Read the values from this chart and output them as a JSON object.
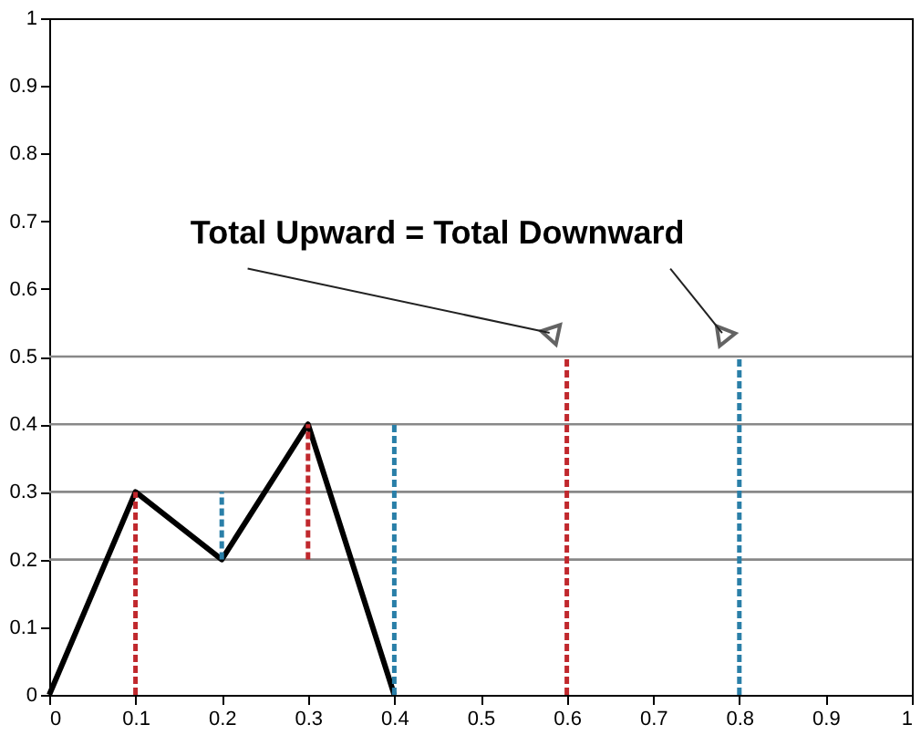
{
  "chart_data": {
    "type": "line",
    "xlim": [
      0,
      1
    ],
    "ylim": [
      0,
      1
    ],
    "xticks": [
      0,
      0.1,
      0.2,
      0.3,
      0.4,
      0.5,
      0.6,
      0.7,
      0.8,
      0.9,
      1
    ],
    "yticks": [
      0,
      0.1,
      0.2,
      0.3,
      0.4,
      0.5,
      0.6,
      0.7,
      0.8,
      0.9,
      1
    ],
    "grid": false,
    "marker": "none",
    "series": [
      {
        "color": "#000000",
        "line_style": "solid",
        "x": [
          0,
          0.1,
          0.2,
          0.3,
          0.4
        ],
        "values": [
          0,
          0.3,
          0.2,
          0.4,
          0
        ]
      },
      {
        "color": "#c0282d",
        "line_style": "dashed",
        "x": [
          0.1,
          0.1
        ],
        "values": [
          0,
          0.3
        ]
      },
      {
        "color": "#2a7fa8",
        "line_style": "dashed",
        "x": [
          0.2,
          0.2
        ],
        "values": [
          0.2,
          0.3
        ]
      },
      {
        "color": "#c0282d",
        "line_style": "dashed",
        "x": [
          0.3,
          0.3
        ],
        "values": [
          0.2,
          0.4
        ]
      },
      {
        "color": "#2a7fa8",
        "line_style": "dashed",
        "x": [
          0.4,
          0.4
        ],
        "values": [
          0,
          0.4
        ]
      },
      {
        "color": "#c0282d",
        "line_style": "dashed",
        "x": [
          0.6,
          0.6
        ],
        "values": [
          0,
          0.5
        ]
      },
      {
        "color": "#2a7fa8",
        "line_style": "dashed",
        "x": [
          0.8,
          0.8
        ],
        "values": [
          0,
          0.5
        ]
      }
    ],
    "ref_lines": [
      {
        "axis": "y",
        "value": 0.2,
        "color": "#888888"
      },
      {
        "axis": "y",
        "value": 0.3,
        "color": "#888888"
      },
      {
        "axis": "y",
        "value": 0.4,
        "color": "#888888"
      },
      {
        "axis": "y",
        "value": 0.5,
        "color": "#888888"
      }
    ],
    "annotations": [
      "Total Upward = Total Downward"
    ]
  }
}
